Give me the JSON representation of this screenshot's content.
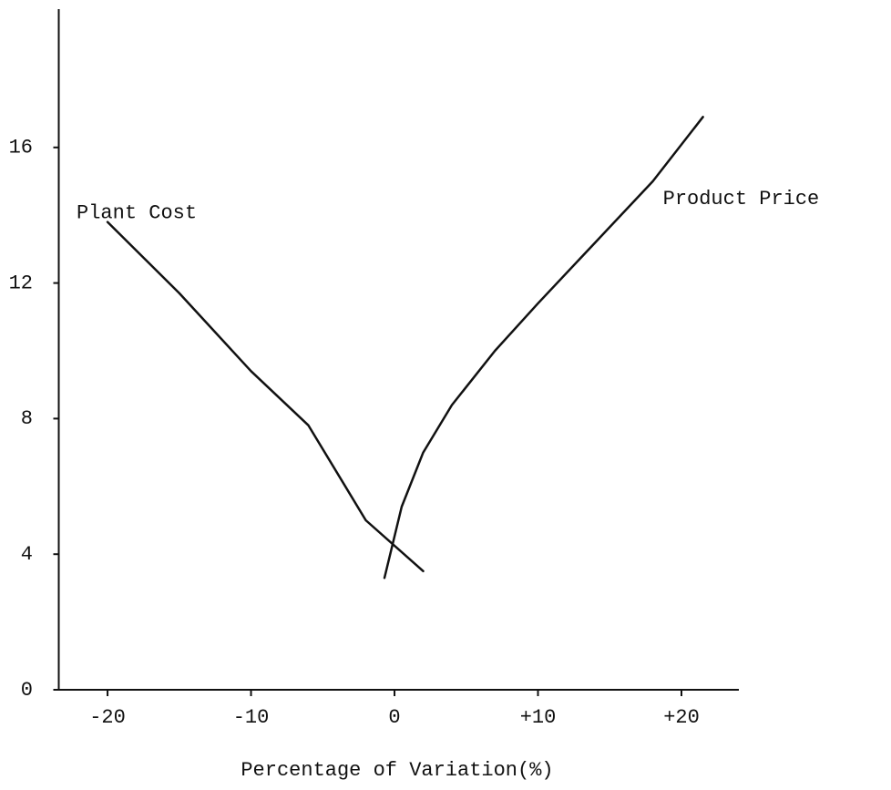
{
  "chart_data": {
    "type": "line",
    "x_label": "Percentage of Variation(%)",
    "xlim": [
      -23.4,
      24
    ],
    "xticks": [
      -20,
      -10,
      0,
      {
        "value": 10,
        "label": "+10"
      },
      {
        "value": 20,
        "label": "+20"
      }
    ],
    "ylim": [
      0,
      20
    ],
    "yticks": [
      0,
      4,
      8,
      12,
      16
    ],
    "series": [
      {
        "name": "Plant Cost",
        "color": "#111111",
        "x": [
          -20,
          -15,
          -10,
          -6,
          -2,
          2
        ],
        "values": [
          13.8,
          11.7,
          9.4,
          7.8,
          5.0,
          3.5
        ]
      },
      {
        "name": "Product Price",
        "color": "#111111",
        "x": [
          -0.7,
          0.5,
          2,
          4,
          7,
          10,
          14,
          18,
          21.5
        ],
        "values": [
          3.3,
          5.4,
          7.0,
          8.4,
          10.0,
          11.4,
          13.2,
          15.0,
          16.9
        ]
      }
    ]
  }
}
